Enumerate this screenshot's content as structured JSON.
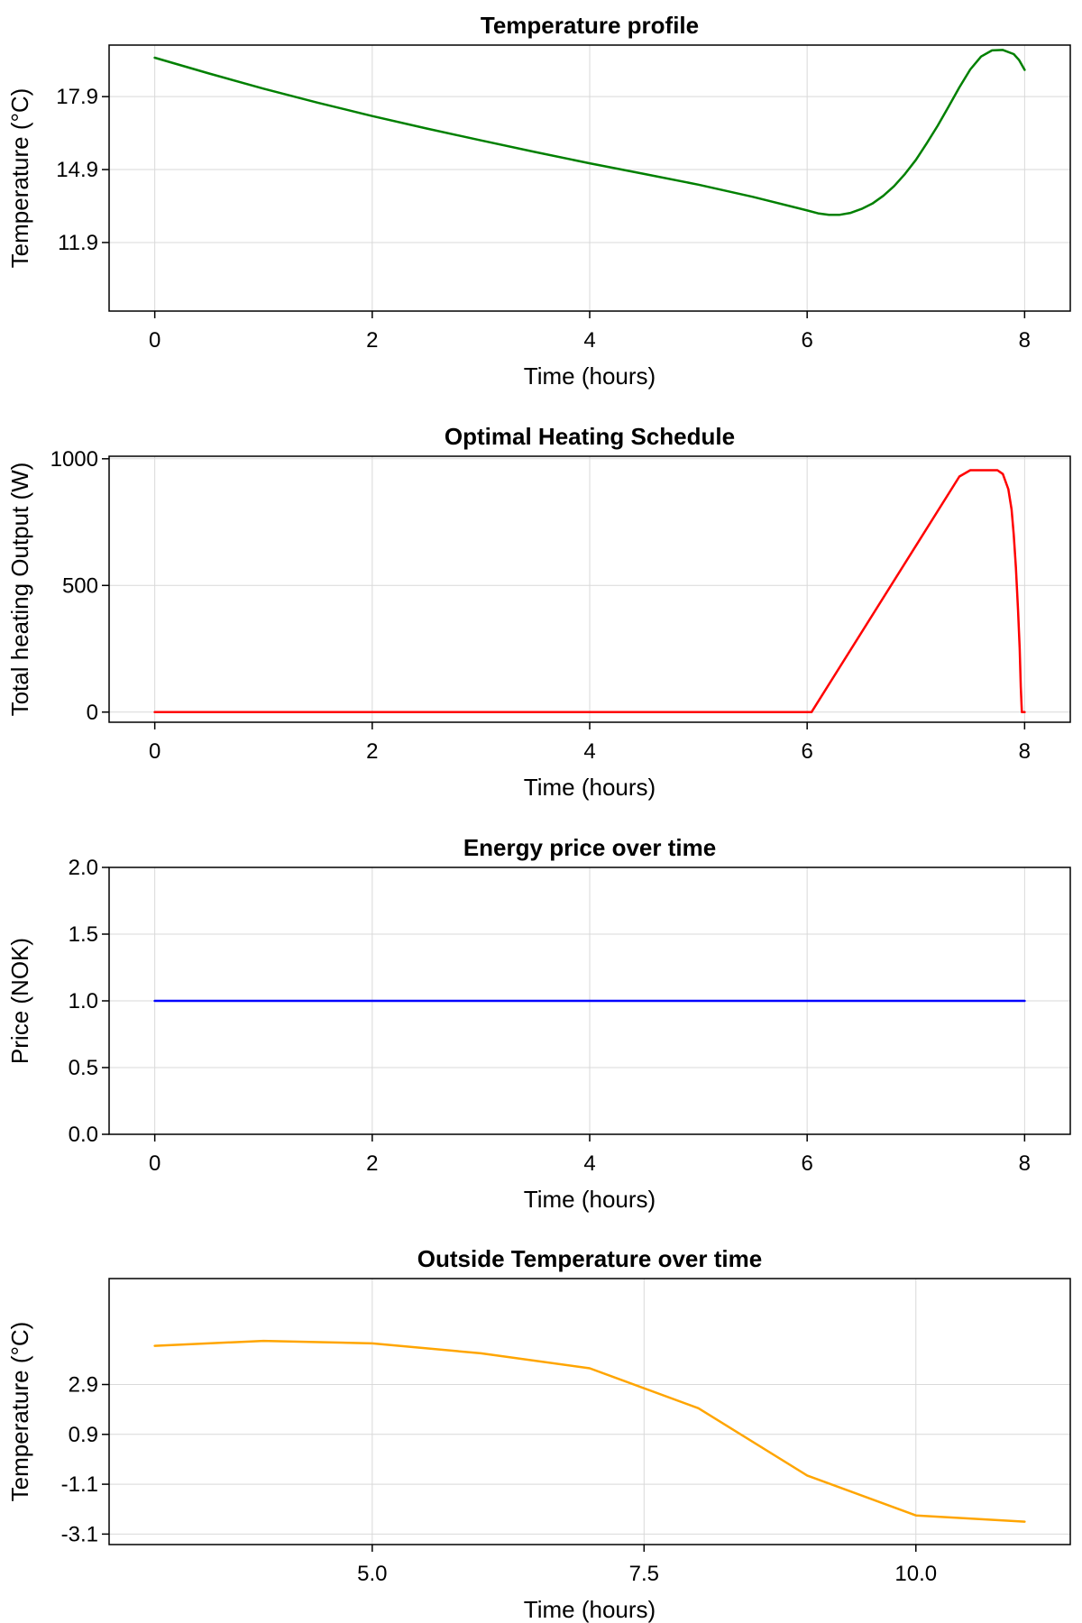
{
  "chart_data": [
    {
      "type": "line",
      "title": "Temperature profile",
      "xlabel": "Time (hours)",
      "ylabel": "Temperature (°C)",
      "xlim": [
        -0.42,
        8.42
      ],
      "ylim": [
        9.08,
        20.02
      ],
      "xticks": [
        0,
        2,
        4,
        6,
        8
      ],
      "xtick_labels": [
        "0",
        "2",
        "4",
        "6",
        "8"
      ],
      "yticks": [
        11.9,
        14.9,
        17.9
      ],
      "ytick_labels": [
        "11.9",
        "14.9",
        "17.9"
      ],
      "grid": true,
      "series": [
        {
          "color": "#008000",
          "x": [
            0,
            0.5,
            1,
            1.5,
            2,
            2.5,
            3,
            3.5,
            4,
            4.5,
            5,
            5.5,
            6,
            6.1,
            6.2,
            6.3,
            6.4,
            6.5,
            6.6,
            6.7,
            6.8,
            6.9,
            7,
            7.1,
            7.2,
            7.3,
            7.4,
            7.5,
            7.6,
            7.7,
            7.8,
            7.9,
            7.95,
            8
          ],
          "y": [
            19.5,
            18.85,
            18.23,
            17.65,
            17.1,
            16.59,
            16.1,
            15.62,
            15.16,
            14.72,
            14.28,
            13.78,
            13.22,
            13.1,
            13.04,
            13.04,
            13.12,
            13.28,
            13.5,
            13.82,
            14.22,
            14.72,
            15.3,
            15.98,
            16.7,
            17.48,
            18.28,
            19.02,
            19.55,
            19.8,
            19.82,
            19.65,
            19.4,
            19.0
          ]
        }
      ]
    },
    {
      "type": "line",
      "title": "Optimal Heating Schedule",
      "xlabel": "Time (hours)",
      "ylabel": "Total heating Output (W)",
      "xlim": [
        -0.42,
        8.42
      ],
      "ylim": [
        -40,
        1010
      ],
      "xticks": [
        0,
        2,
        4,
        6,
        8
      ],
      "xtick_labels": [
        "0",
        "2",
        "4",
        "6",
        "8"
      ],
      "yticks": [
        0,
        500,
        1000
      ],
      "ytick_labels": [
        "0",
        "500",
        "1000"
      ],
      "grid": true,
      "series": [
        {
          "color": "#ff0000",
          "x": [
            0,
            6.04,
            7.4,
            7.5,
            7.75,
            7.8,
            7.85,
            7.88,
            7.9,
            7.92,
            7.94,
            7.955,
            7.965,
            7.975,
            8.0
          ],
          "y": [
            0,
            0,
            930,
            955,
            955,
            940,
            880,
            800,
            700,
            570,
            400,
            250,
            100,
            0,
            0
          ]
        }
      ]
    },
    {
      "type": "line",
      "title": "Energy price over time",
      "xlabel": "Time (hours)",
      "ylabel": "Price (NOK)",
      "xlim": [
        -0.42,
        8.42
      ],
      "ylim": [
        0.0,
        2.0
      ],
      "xticks": [
        0,
        2,
        4,
        6,
        8
      ],
      "xtick_labels": [
        "0",
        "2",
        "4",
        "6",
        "8"
      ],
      "yticks": [
        0.0,
        0.5,
        1.0,
        1.5,
        2.0
      ],
      "ytick_labels": [
        "0.0",
        "0.5",
        "1.0",
        "1.5",
        "2.0"
      ],
      "grid": true,
      "series": [
        {
          "color": "#0000ff",
          "x": [
            0,
            8
          ],
          "y": [
            1.0,
            1.0
          ]
        }
      ]
    },
    {
      "type": "line",
      "title": "Outside Temperature over time",
      "xlabel": "Time (hours)",
      "ylabel": "Temperature (°C)",
      "xlim": [
        2.58,
        11.42
      ],
      "ylim": [
        -3.52,
        7.15
      ],
      "xticks": [
        5.0,
        7.5,
        10.0
      ],
      "xtick_labels": [
        "5.0",
        "7.5",
        "10.0"
      ],
      "yticks": [
        -3.1,
        -1.1,
        0.9,
        2.9
      ],
      "ytick_labels": [
        "-3.1",
        "-1.1",
        "0.9",
        "2.9"
      ],
      "grid": true,
      "series": [
        {
          "color": "#ffa500",
          "x": [
            3,
            4,
            5,
            6,
            7,
            8,
            9,
            10,
            11
          ],
          "y": [
            4.45,
            4.65,
            4.55,
            4.15,
            3.55,
            1.95,
            -0.75,
            -2.35,
            -2.6
          ]
        }
      ]
    }
  ]
}
